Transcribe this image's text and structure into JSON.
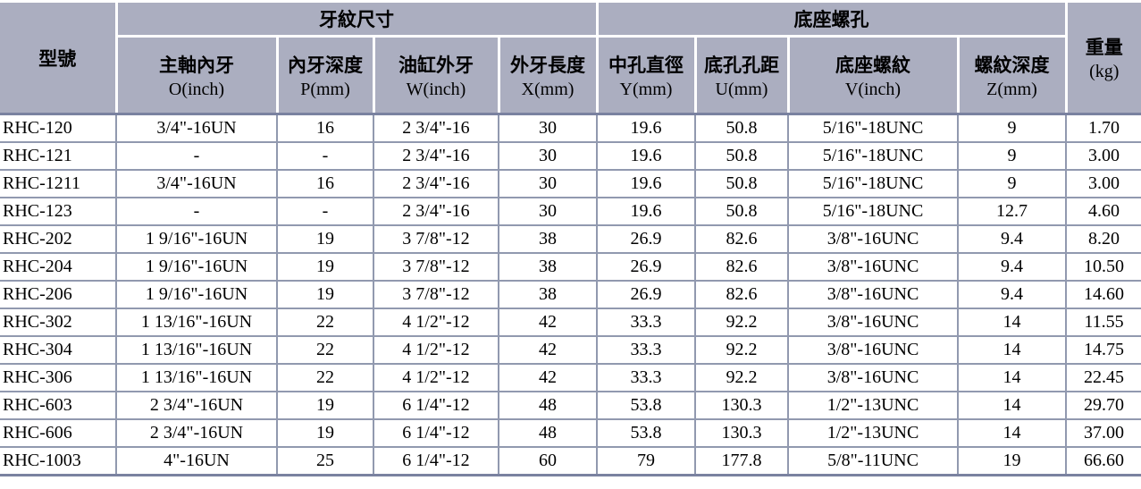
{
  "colors": {
    "header_bg": "#abaec0",
    "grid": "#9199af",
    "strong_line": "#7a82a0",
    "text": "#000000"
  },
  "table": {
    "group_headers": {
      "model": "型號",
      "thread_group": "牙紋尺寸",
      "base_group": "底座螺孔",
      "weight_line1": "重量",
      "weight_line2": "(kg)"
    },
    "columns": [
      {
        "line1": "主軸內牙",
        "line2": "O(inch)"
      },
      {
        "line1": "內牙深度",
        "line2": "P(mm)"
      },
      {
        "line1": "油缸外牙",
        "line2": "W(inch)"
      },
      {
        "line1": "外牙長度",
        "line2": "X(mm)"
      },
      {
        "line1": "中孔直徑",
        "line2": "Y(mm)"
      },
      {
        "line1": "底孔孔距",
        "line2": "U(mm)"
      },
      {
        "line1": "底座螺紋",
        "line2": "V(inch)"
      },
      {
        "line1": "螺紋深度",
        "line2": "Z(mm)"
      }
    ],
    "rows": [
      [
        "RHC-120",
        "3/4\"-16UN",
        "16",
        "2 3/4\"-16",
        "30",
        "19.6",
        "50.8",
        "5/16\"-18UNC",
        "9",
        "1.70"
      ],
      [
        "RHC-121",
        "-",
        "-",
        "2 3/4\"-16",
        "30",
        "19.6",
        "50.8",
        "5/16\"-18UNC",
        "9",
        "3.00"
      ],
      [
        "RHC-1211",
        "3/4\"-16UN",
        "16",
        "2 3/4\"-16",
        "30",
        "19.6",
        "50.8",
        "5/16\"-18UNC",
        "9",
        "3.00"
      ],
      [
        "RHC-123",
        "-",
        "-",
        "2 3/4\"-16",
        "30",
        "19.6",
        "50.8",
        "5/16\"-18UNC",
        "12.7",
        "4.60"
      ],
      [
        "RHC-202",
        "1 9/16\"-16UN",
        "19",
        "3 7/8\"-12",
        "38",
        "26.9",
        "82.6",
        "3/8\"-16UNC",
        "9.4",
        "8.20"
      ],
      [
        "RHC-204",
        "1 9/16\"-16UN",
        "19",
        "3 7/8\"-12",
        "38",
        "26.9",
        "82.6",
        "3/8\"-16UNC",
        "9.4",
        "10.50"
      ],
      [
        "RHC-206",
        "1 9/16\"-16UN",
        "19",
        "3 7/8\"-12",
        "38",
        "26.9",
        "82.6",
        "3/8\"-16UNC",
        "9.4",
        "14.60"
      ],
      [
        "RHC-302",
        "1 13/16\"-16UN",
        "22",
        "4 1/2\"-12",
        "42",
        "33.3",
        "92.2",
        "3/8\"-16UNC",
        "14",
        "11.55"
      ],
      [
        "RHC-304",
        "1 13/16\"-16UN",
        "22",
        "4 1/2\"-12",
        "42",
        "33.3",
        "92.2",
        "3/8\"-16UNC",
        "14",
        "14.75"
      ],
      [
        "RHC-306",
        "1 13/16\"-16UN",
        "22",
        "4 1/2\"-12",
        "42",
        "33.3",
        "92.2",
        "3/8\"-16UNC",
        "14",
        "22.45"
      ],
      [
        "RHC-603",
        "2 3/4\"-16UN",
        "19",
        "6 1/4\"-12",
        "48",
        "53.8",
        "130.3",
        "1/2\"-13UNC",
        "14",
        "29.70"
      ],
      [
        "RHC-606",
        "2 3/4\"-16UN",
        "19",
        "6 1/4\"-12",
        "48",
        "53.8",
        "130.3",
        "1/2\"-13UNC",
        "14",
        "37.00"
      ],
      [
        "RHC-1003",
        "4\"-16UN",
        "25",
        "6 1/4\"-12",
        "60",
        "79",
        "177.8",
        "5/8\"-11UNC",
        "19",
        "66.60"
      ]
    ]
  }
}
